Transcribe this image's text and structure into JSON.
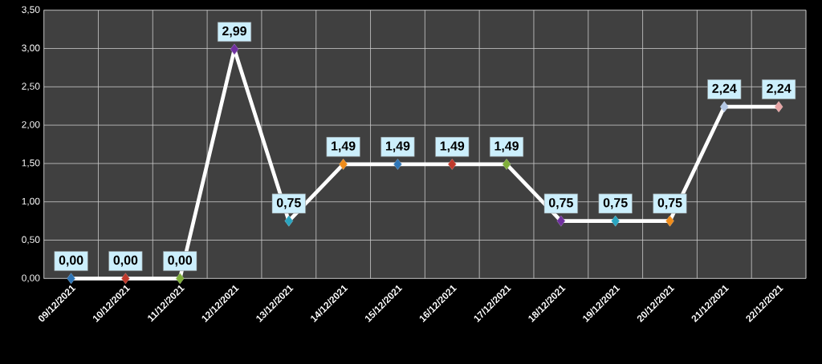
{
  "chart_data": {
    "type": "line",
    "categories": [
      "09/12/2021",
      "10/12/2021",
      "11/12/2021",
      "12/12/2021",
      "13/12/2021",
      "14/12/2021",
      "15/12/2021",
      "16/12/2021",
      "17/12/2021",
      "18/12/2021",
      "19/12/2021",
      "20/12/2021",
      "21/12/2021",
      "22/12/2021"
    ],
    "series": [
      {
        "color": "#ffffff",
        "values": [
          0,
          0,
          0,
          2.99,
          0.75,
          1.49,
          1.49,
          1.49,
          1.49,
          0.75,
          0.75,
          0.75,
          2.24,
          2.24
        ],
        "colors": [
          "#2e75b6",
          "#c0392b",
          "#7fae3a",
          "#7030a0",
          "#2aa5c0",
          "#f08c1a",
          "#2e75b6",
          "#c0392b",
          "#7fae3a",
          "#7030a0",
          "#2aa5c0",
          "#f08c1a",
          "#b4c8e6",
          "#e8a4a4"
        ],
        "value_labels": [
          "0,00",
          "0,00",
          "0,00",
          "2,99",
          "0,75",
          "1,49",
          "1,49",
          "1,49",
          "1,49",
          "0,75",
          "0,75",
          "0,75",
          "2,24",
          "2,24"
        ]
      }
    ],
    "ylim": [
      0,
      3.5
    ],
    "yticks": [
      {
        "value": 0,
        "label": "0,00"
      },
      {
        "value": 0.5,
        "label": "0,50"
      },
      {
        "value": 1,
        "label": "1,00"
      },
      {
        "value": 1.5,
        "label": "1,50"
      },
      {
        "value": 2,
        "label": "2,00"
      },
      {
        "value": 2.5,
        "label": "2,50"
      },
      {
        "value": 3,
        "label": "3,00"
      },
      {
        "value": 3.5,
        "label": "3,50"
      }
    ],
    "grid": true,
    "marker": "diamond",
    "line_style": "solid"
  }
}
